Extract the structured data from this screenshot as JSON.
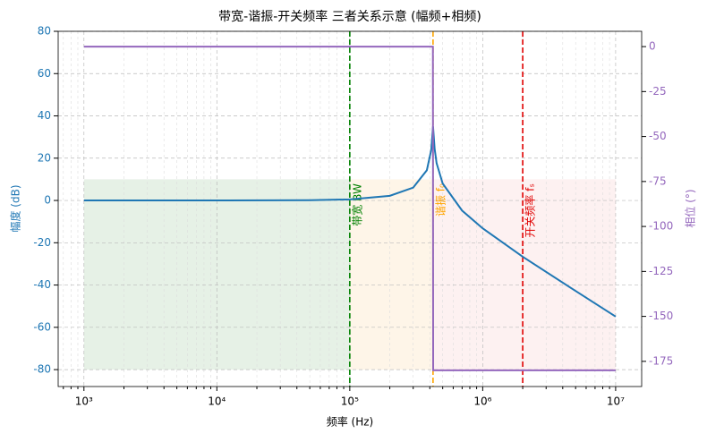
{
  "chart_data": {
    "type": "line",
    "title": "带宽-谐振-开关频率 三者关系示意 (幅频+相频)",
    "xlabel": "频率 (Hz)",
    "ylabel": "幅度 (dB)",
    "y2label": "相位 (°)",
    "xscale": "log",
    "grid": true,
    "xlim": [
      640,
      15700000
    ],
    "ylim": [
      -88,
      80
    ],
    "y2lim": [
      -189,
      8.5
    ],
    "xticks": [
      {
        "value": 1000,
        "label": "10³"
      },
      {
        "value": 10000,
        "label": "10⁴"
      },
      {
        "value": 100000,
        "label": "10⁵"
      },
      {
        "value": 1000000,
        "label": "10⁶"
      },
      {
        "value": 10000000,
        "label": "10⁷"
      }
    ],
    "xminorticks": [
      700,
      800,
      900,
      2000,
      3000,
      4000,
      5000,
      6000,
      7000,
      8000,
      9000,
      20000,
      30000,
      40000,
      50000,
      60000,
      70000,
      80000,
      90000,
      200000,
      300000,
      400000,
      500000,
      600000,
      700000,
      800000,
      900000,
      2000000,
      3000000,
      4000000,
      5000000,
      6000000,
      7000000,
      8000000,
      9000000
    ],
    "yticks": [
      -80,
      -60,
      -40,
      -20,
      0,
      20,
      40,
      60,
      80
    ],
    "y2ticks": [
      -175,
      -150,
      -125,
      -100,
      -75,
      -50,
      -25,
      0
    ],
    "series": [
      {
        "name": "幅度",
        "color": "#1f77b4",
        "axis": "y",
        "x": [
          1000,
          10000,
          50000,
          100000,
          200000,
          300000,
          380000,
          410000,
          423000,
          435000,
          450000,
          500000,
          700000,
          1000000,
          2000000,
          5000000,
          10000000
        ],
        "values": [
          0,
          0,
          0.1,
          0.5,
          2.2,
          6.1,
          14.3,
          23.9,
          35,
          24.4,
          17.6,
          8.0,
          -4.8,
          -13.2,
          -26.6,
          -42.8,
          -54.9
        ]
      },
      {
        "name": "相位",
        "color": "#9467bd",
        "axis": "y2",
        "x": [
          1000,
          422000,
          424000,
          10000000
        ],
        "values": [
          0,
          0,
          -180,
          -180
        ]
      }
    ],
    "bands": [
      {
        "x": [
          1000,
          100000
        ],
        "y": [
          -80,
          10
        ],
        "color": "#2e8b2e"
      },
      {
        "x": [
          100000,
          423000
        ],
        "y": [
          -80,
          10
        ],
        "color": "#f5b041"
      },
      {
        "x": [
          423000,
          10000000
        ],
        "y": [
          -80,
          10
        ],
        "color": "#f28b8b"
      }
    ],
    "vlines": [
      {
        "x": 100000,
        "label": "带宽 BW",
        "color": "#008000"
      },
      {
        "x": 423000,
        "label": "谐振 f₀",
        "color": "#ffa500"
      },
      {
        "x": 2000000,
        "label": "开关频率 fₛ",
        "color": "#e00000"
      }
    ]
  }
}
